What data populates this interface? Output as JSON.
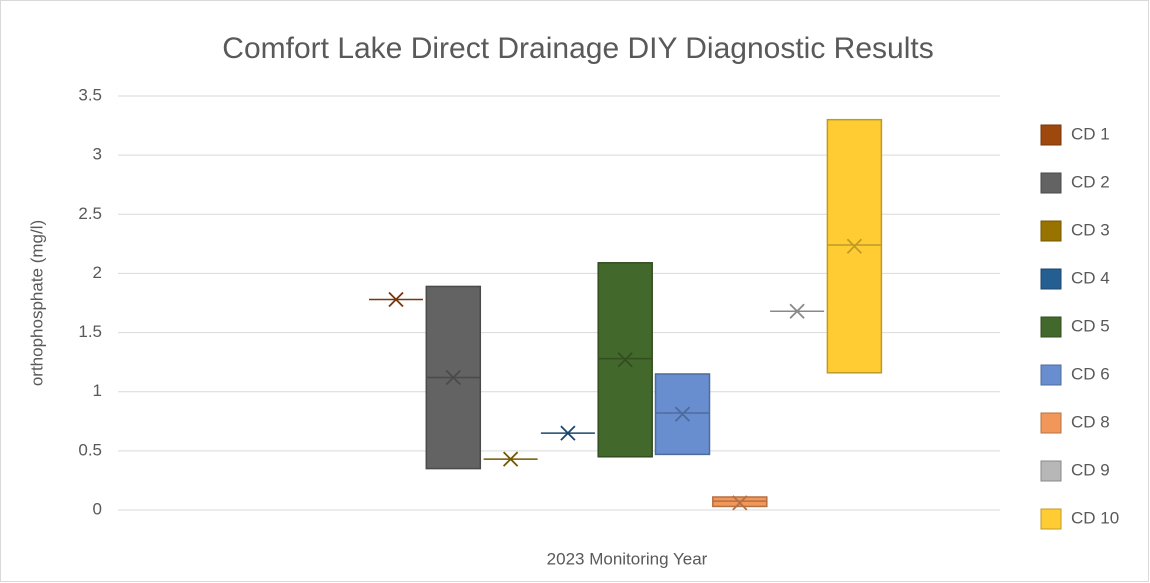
{
  "chart_data": {
    "type": "box",
    "title": "Comfort Lake Direct Drainage DIY Diagnostic Results",
    "x_label": "2023 Monitoring Year",
    "y_label": "orthophosphate (mg/l)",
    "ylim": [
      0,
      3.5
    ],
    "yticks": [
      0,
      0.5,
      1,
      1.5,
      2,
      2.5,
      3,
      3.5
    ],
    "grid": true,
    "legend": "right",
    "series": [
      {
        "name": "CD 1",
        "color": "#9e480e",
        "q1": 1.78,
        "median": 1.78,
        "q3": 1.78,
        "mean": 1.78
      },
      {
        "name": "CD 2",
        "color": "#636363",
        "q1": 0.35,
        "median": 1.12,
        "q3": 1.89,
        "mean": 1.12
      },
      {
        "name": "CD 3",
        "color": "#997300",
        "q1": 0.43,
        "median": 0.43,
        "q3": 0.43,
        "mean": 0.43
      },
      {
        "name": "CD 4",
        "color": "#255e91",
        "q1": 0.65,
        "median": 0.65,
        "q3": 0.65,
        "mean": 0.65
      },
      {
        "name": "CD 5",
        "color": "#43682b",
        "q1": 0.45,
        "median": 1.28,
        "q3": 2.09,
        "mean": 1.27
      },
      {
        "name": "CD 6",
        "color": "#698ed0",
        "q1": 0.47,
        "median": 0.82,
        "q3": 1.15,
        "mean": 0.81
      },
      {
        "name": "CD 8",
        "color": "#f1975a",
        "q1": 0.03,
        "median": 0.075,
        "q3": 0.11,
        "mean": 0.06
      },
      {
        "name": "CD 9",
        "color": "#b7b7b7",
        "q1": 1.68,
        "median": 1.68,
        "q3": 1.68,
        "mean": 1.68
      },
      {
        "name": "CD 10",
        "color": "#ffcd33",
        "q1": 1.16,
        "median": 2.24,
        "q3": 3.3,
        "mean": 2.23
      }
    ]
  }
}
